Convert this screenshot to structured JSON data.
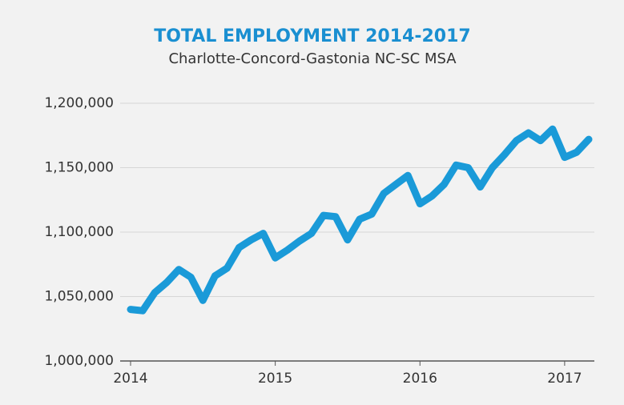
{
  "chart_data": {
    "type": "line",
    "title": "TOTAL EMPLOYMENT 2014-2017",
    "subtitle": "Charlotte-Concord-Gastonia NC-SC MSA",
    "categories": [
      "2014",
      null,
      null,
      null,
      null,
      null,
      null,
      null,
      null,
      null,
      null,
      null,
      "2015",
      null,
      null,
      null,
      null,
      null,
      null,
      null,
      null,
      null,
      null,
      null,
      "2016",
      null,
      null,
      null,
      null,
      null,
      null,
      null,
      null,
      null,
      null,
      null,
      "2017",
      null,
      null
    ],
    "series": [
      {
        "color": "#1a9ad8",
        "values": [
          1040000,
          1039000,
          1053000,
          1061000,
          1071000,
          1065000,
          1047000,
          1066000,
          1072000,
          1088000,
          1094000,
          1099000,
          1080000,
          1086000,
          1093000,
          1099000,
          1113000,
          1112000,
          1094000,
          1110000,
          1114000,
          1130000,
          1137000,
          1144000,
          1122000,
          1128000,
          1137000,
          1152000,
          1150000,
          1135000,
          1150000,
          1160000,
          1171000,
          1177000,
          1171000,
          1180000,
          1158000,
          1162000,
          1172000
        ]
      }
    ],
    "ylim": [
      1000000,
      1200000
    ],
    "yticks": [
      {
        "value": 1000000,
        "label": "1,000,000"
      },
      {
        "value": 1050000,
        "label": "1,050,000"
      },
      {
        "value": 1100000,
        "label": "1,100,000"
      },
      {
        "value": 1150000,
        "label": "1,150,000"
      },
      {
        "value": 1200000,
        "label": "1,200,000"
      }
    ],
    "grid": true
  }
}
